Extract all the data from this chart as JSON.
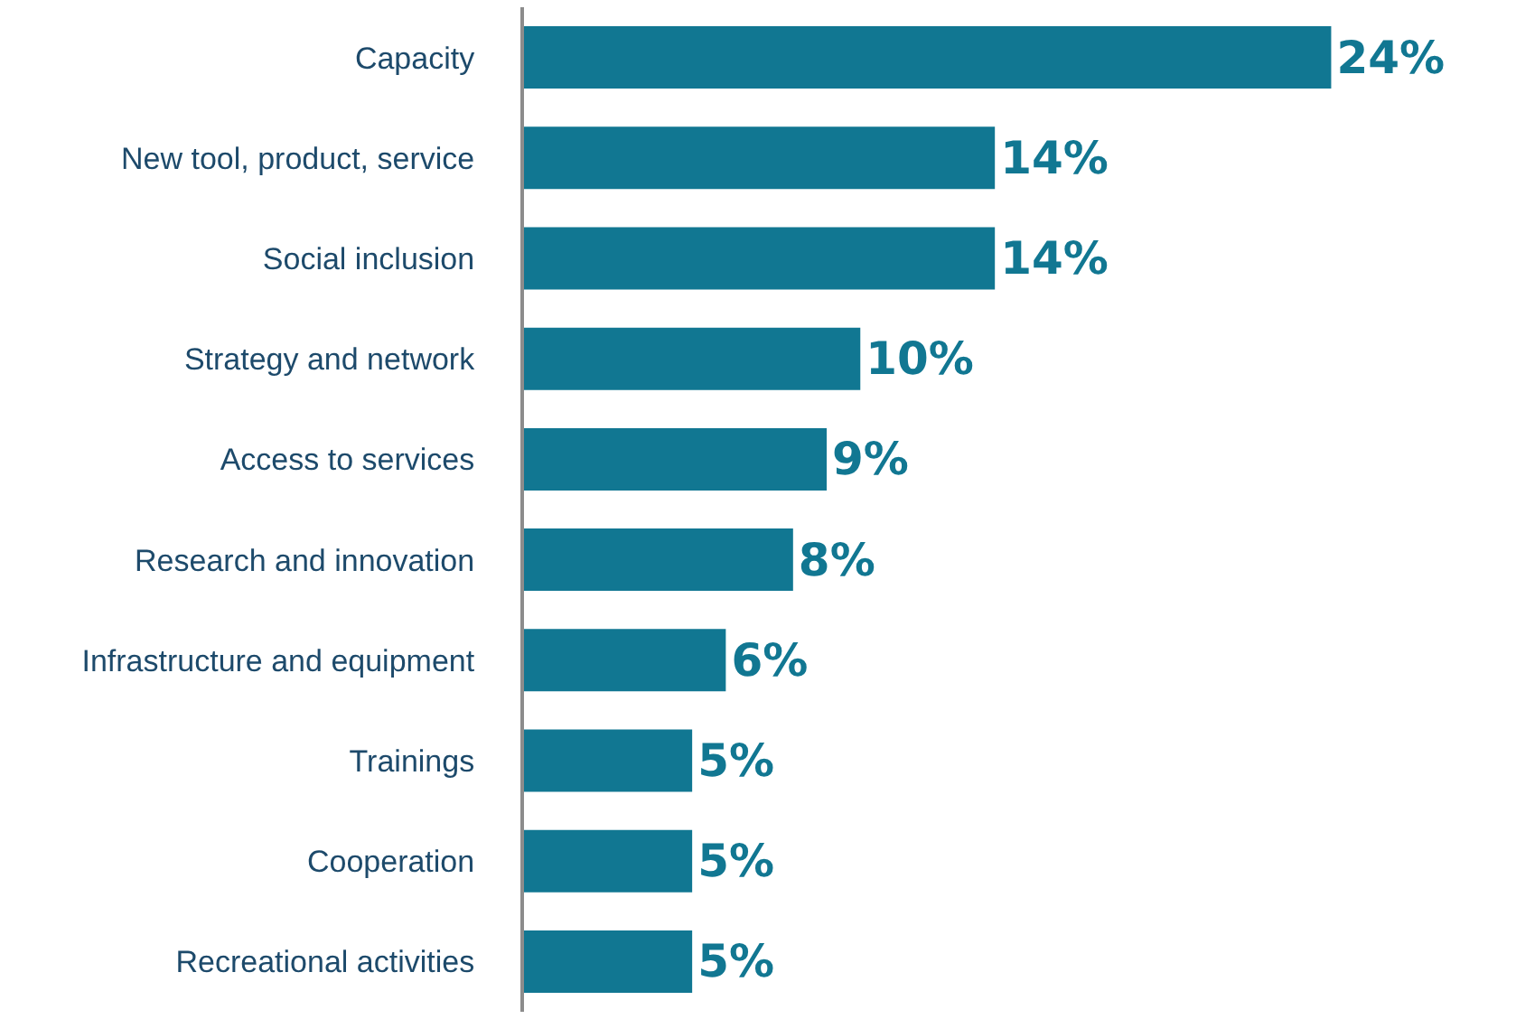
{
  "chart_data": {
    "type": "bar",
    "orientation": "horizontal",
    "categories": [
      "Capacity",
      "New tool, product, service",
      "Social inclusion",
      "Strategy and network",
      "Access to services",
      "Research and innovation",
      "Infrastructure and equipment",
      "Trainings",
      "Cooperation",
      "Recreational activities"
    ],
    "values": [
      24,
      14,
      14,
      10,
      9,
      8,
      6,
      5,
      5,
      5
    ],
    "value_labels": [
      "24%",
      "14%",
      "14%",
      "10%",
      "9%",
      "8%",
      "6%",
      "5%",
      "5%",
      "5%"
    ],
    "color": "#117792",
    "grid": false,
    "legend": false
  }
}
